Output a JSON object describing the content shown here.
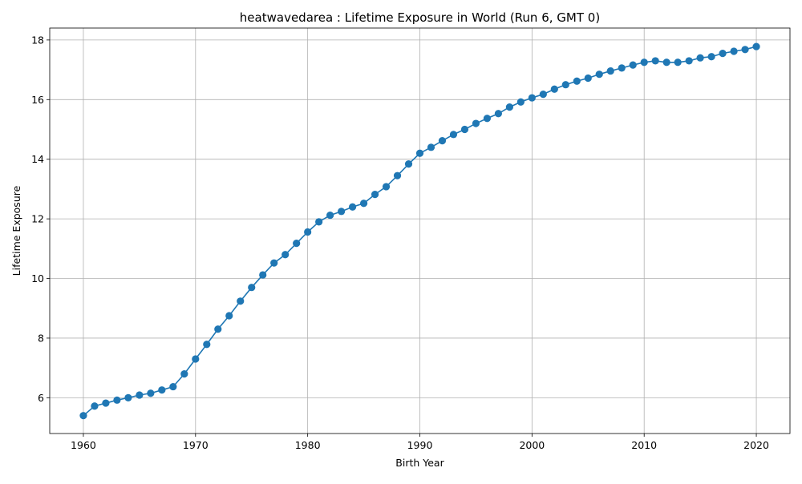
{
  "chart_data": {
    "type": "line",
    "title": "heatwavedarea : Lifetime Exposure in World (Run 6, GMT 0)",
    "xlabel": "Birth Year",
    "ylabel": "Lifetime Exposure",
    "xlim": [
      1957,
      2023
    ],
    "ylim": [
      4.8,
      18.4
    ],
    "xticks": [
      1960,
      1970,
      1980,
      1990,
      2000,
      2010,
      2020
    ],
    "yticks": [
      6,
      8,
      10,
      12,
      14,
      16,
      18
    ],
    "grid": true,
    "marker": "circle",
    "color": "#1f77b4",
    "series": [
      {
        "x": [
          1960,
          1961,
          1962,
          1963,
          1964,
          1965,
          1966,
          1967,
          1968,
          1969,
          1970,
          1971,
          1972,
          1973,
          1974,
          1975,
          1976,
          1977,
          1978,
          1979,
          1980,
          1981,
          1982,
          1983,
          1984,
          1985,
          1986,
          1987,
          1988,
          1989,
          1990,
          1991,
          1992,
          1993,
          1994,
          1995,
          1996,
          1997,
          1998,
          1999,
          2000,
          2001,
          2002,
          2003,
          2004,
          2005,
          2006,
          2007,
          2008,
          2009,
          2010,
          2011,
          2012,
          2013,
          2014,
          2015,
          2016,
          2017,
          2018,
          2019,
          2020
        ],
        "values": [
          5.4,
          5.72,
          5.82,
          5.92,
          6.0,
          6.09,
          6.15,
          6.26,
          6.37,
          6.8,
          7.3,
          7.79,
          8.3,
          8.75,
          9.24,
          9.7,
          10.12,
          10.52,
          10.8,
          11.18,
          11.56,
          11.9,
          12.12,
          12.25,
          12.4,
          12.52,
          12.82,
          13.08,
          13.45,
          13.84,
          14.2,
          14.4,
          14.62,
          14.83,
          15.0,
          15.2,
          15.37,
          15.53,
          15.75,
          15.92,
          16.06,
          16.18,
          16.35,
          16.5,
          16.62,
          16.72,
          16.85,
          16.96,
          17.06,
          17.16,
          17.25,
          17.3,
          17.25,
          17.25,
          17.3,
          17.4,
          17.44,
          17.55,
          17.62,
          17.68,
          17.78
        ]
      }
    ]
  }
}
